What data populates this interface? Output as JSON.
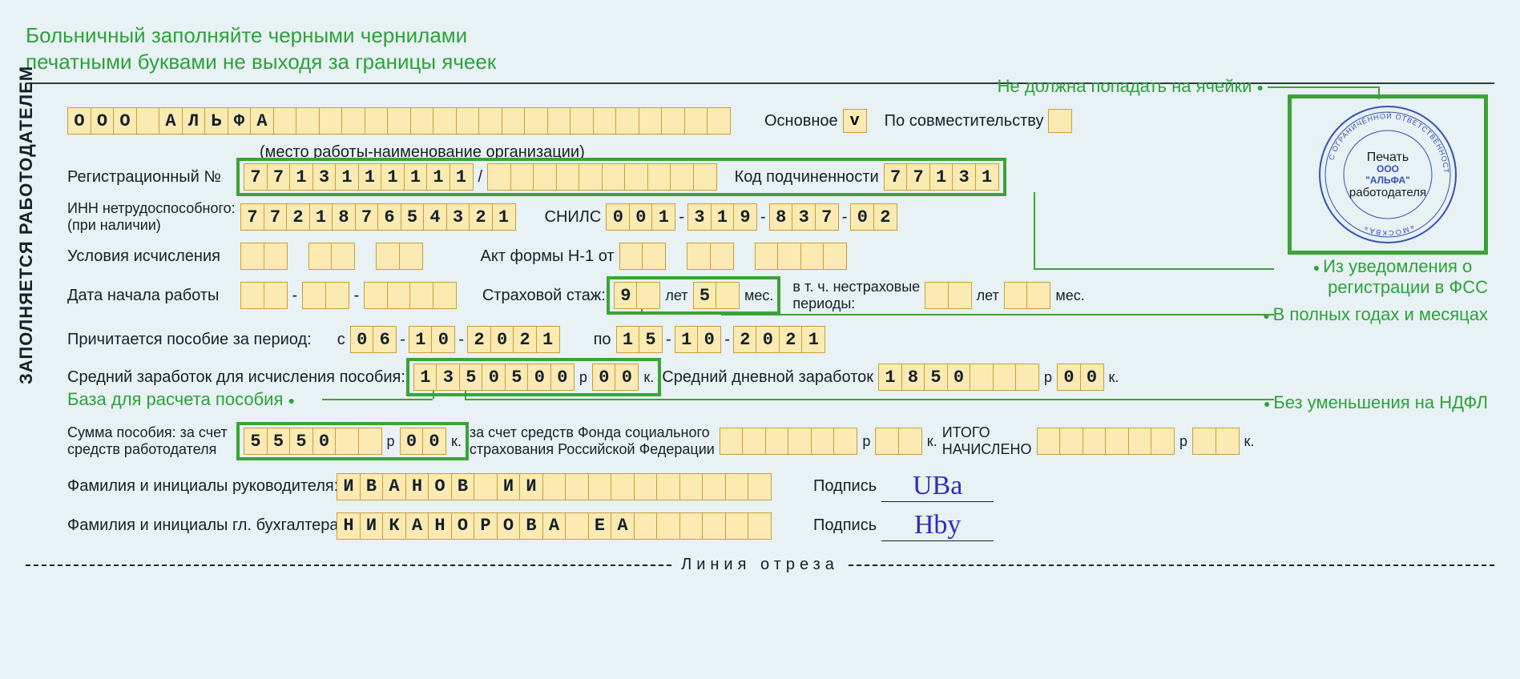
{
  "colors": {
    "cell_bg": "#fbeab1",
    "cell_border": "#c99f3a",
    "page_bg": "#e8f1f3",
    "text": "#14202a",
    "highlight": "#3ba336",
    "annotation": "#2ba33a",
    "stamp": "#3551b5",
    "signature": "#2a2fbf"
  },
  "title": {
    "line1": "Больничный заполняйте черными чернилами",
    "line2": "печатными буквами не выходя за границы ячеек"
  },
  "side_label": "ЗАПОЛНЯЕТСЯ РАБОТОДАТЕЛЕМ",
  "org_name_cells": [
    "О",
    "О",
    "О",
    "",
    "А",
    "Л",
    "Ь",
    "Ф",
    "А",
    "",
    "",
    "",
    "",
    "",
    "",
    "",
    "",
    "",
    "",
    "",
    "",
    "",
    "",
    "",
    "",
    "",
    "",
    "",
    ""
  ],
  "org_name_sub": "(место работы-наименование организации)",
  "main_label": "Основное",
  "main_check": "v",
  "parttime_label": "По совместительству",
  "reg_no_label": "Регистрационный №",
  "reg_no": [
    "7",
    "7",
    "1",
    "3",
    "1",
    "1",
    "1",
    "1",
    "1",
    "1"
  ],
  "reg_no_sep": "/",
  "reg_ext": [
    "",
    "",
    "",
    "",
    "",
    "",
    "",
    "",
    "",
    ""
  ],
  "subord_label": "Код подчиненности",
  "subord": [
    "7",
    "7",
    "1",
    "3",
    "1"
  ],
  "inn_label1": "ИНН нетрудоспособного:",
  "inn_label2": "(при наличии)",
  "inn": [
    "7",
    "7",
    "2",
    "1",
    "8",
    "7",
    "6",
    "5",
    "4",
    "3",
    "2",
    "1"
  ],
  "snils_label": "СНИЛС",
  "snils": [
    "0",
    "0",
    "1",
    "-",
    "3",
    "1",
    "9",
    "-",
    "8",
    "3",
    "7",
    "-",
    "0",
    "2"
  ],
  "cond_label": "Условия исчисления",
  "act_label": "Акт формы Н-1 от",
  "start_label": "Дата начала работы",
  "stazh_label": "Страховой стаж:",
  "stazh_years": "9",
  "stazh_let": "лет",
  "stazh_months": "5",
  "stazh_mes": "мес.",
  "nostazh_label1": "в т. ч. нестраховые",
  "nostazh_label2": "периоды:",
  "nostazh_let": "лет",
  "nostazh_mes": "мес.",
  "period_label": "Причитается пособие за период:",
  "period_s": "с",
  "period_from": [
    "0",
    "6",
    "-",
    "1",
    "0",
    "-",
    "2",
    "0",
    "2",
    "1"
  ],
  "period_po": "по",
  "period_to": [
    "1",
    "5",
    "-",
    "1",
    "0",
    "-",
    "2",
    "0",
    "2",
    "1"
  ],
  "avg_label": "Средний заработок для исчисления пособия:",
  "avg_rub": [
    "1",
    "3",
    "5",
    "0",
    "5",
    "0",
    "0"
  ],
  "avg_kop": [
    "0",
    "0"
  ],
  "r": "р",
  "k": "к.",
  "daily_label": "Средний дневной заработок",
  "daily_rub": [
    "1",
    "8",
    "5",
    "0",
    "",
    "",
    ""
  ],
  "daily_kop": [
    "0",
    "0"
  ],
  "sum_label1": "Сумма пособия: за счет",
  "sum_label2": "средств работодателя",
  "sum_emp_rub": [
    "5",
    "5",
    "5",
    "0",
    "",
    ""
  ],
  "sum_emp_kop": [
    "0",
    "0"
  ],
  "sum_fss_label1": "за счет средств Фонда социального",
  "sum_fss_label2": "страхования Российской Федерации",
  "sum_fss_rub": [
    "",
    "",
    "",
    "",
    "",
    ""
  ],
  "sum_fss_kop": [
    "",
    ""
  ],
  "itogo_label1": "ИТОГО",
  "itogo_label2": "НАЧИСЛЕНО",
  "itogo_rub": [
    "",
    "",
    "",
    "",
    "",
    ""
  ],
  "itogo_kop": [
    "",
    ""
  ],
  "dir_label": "Фамилия и инициалы руководителя:",
  "dir": [
    "И",
    "В",
    "А",
    "Н",
    "О",
    "В",
    "",
    "И",
    "И",
    "",
    "",
    "",
    "",
    "",
    "",
    "",
    "",
    "",
    ""
  ],
  "acc_label": "Фамилия и инициалы гл. бухгалтера:",
  "acc": [
    "Н",
    "И",
    "К",
    "А",
    "Н",
    "О",
    "Р",
    "О",
    "В",
    "А",
    "",
    "Е",
    "А",
    "",
    "",
    "",
    "",
    "",
    ""
  ],
  "sign_label": "Подпись",
  "cut_label": "Линия отреза",
  "annot": {
    "top": "Не должна попадать на ячейки",
    "fss1": "Из уведомления о",
    "fss2": "регистрации в ФСС",
    "stazh": "В полных годах и месяцах",
    "base": "База для расчета пособия",
    "ndfl": "Без уменьшения на НДФЛ"
  },
  "stamp": {
    "line1": "Печать",
    "org1": "ООО",
    "org2": "\"АЛЬФА\"",
    "line2": "работодателя",
    "ring_top": "С ОГРАНИЧЕННОЙ ОТВЕТСТВЕННОСТЬЮ",
    "ring_bottom": "«МОСКВА»"
  }
}
